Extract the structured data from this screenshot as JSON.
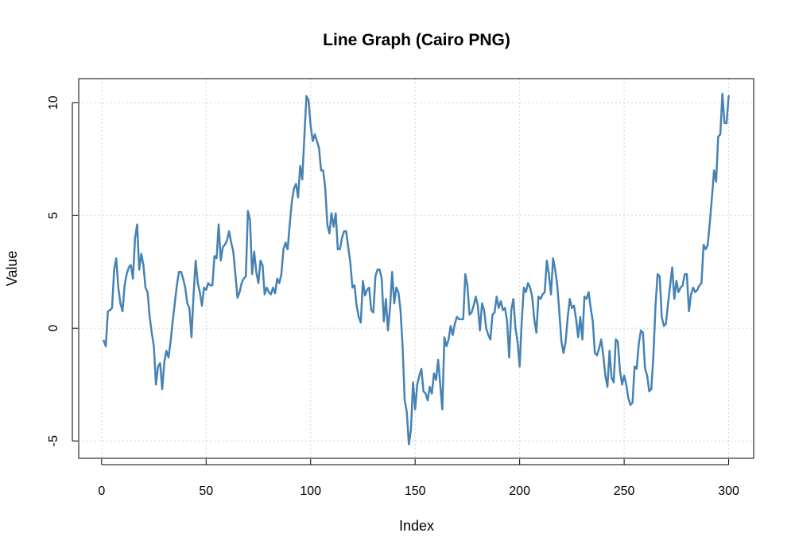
{
  "chart_data": {
    "type": "line",
    "title": "Line Graph (Cairo PNG)",
    "xlabel": "Index",
    "ylabel": "Value",
    "xlim": [
      -10.96,
      311.96
    ],
    "ylim": [
      -5.77,
      11.07
    ],
    "x_ticks": [
      0,
      50,
      100,
      150,
      200,
      250,
      300
    ],
    "y_ticks": [
      -5,
      0,
      5,
      10
    ],
    "grid": true,
    "line_color": "#4682b4",
    "series": [
      {
        "values": [
          -0.55,
          -0.8,
          0.75,
          0.8,
          0.9,
          2.6,
          3.1,
          1.8,
          1.1,
          0.75,
          1.9,
          2.4,
          2.7,
          2.8,
          2.2,
          4.0,
          4.6,
          2.6,
          3.3,
          2.8,
          1.8,
          1.6,
          0.5,
          -0.2,
          -0.8,
          -2.5,
          -1.7,
          -1.55,
          -2.7,
          -1.5,
          -1.0,
          -1.3,
          -0.6,
          0.3,
          1.1,
          1.9,
          2.5,
          2.5,
          2.2,
          1.8,
          1.1,
          0.9,
          -0.4,
          1.5,
          3.0,
          2.0,
          1.6,
          1.0,
          1.8,
          1.7,
          2.0,
          1.9,
          1.9,
          3.2,
          3.1,
          4.6,
          3.0,
          3.6,
          3.7,
          3.9,
          4.3,
          3.8,
          3.4,
          2.4,
          1.35,
          1.6,
          2.0,
          2.2,
          2.3,
          5.2,
          4.8,
          2.4,
          3.4,
          2.5,
          2.0,
          3.0,
          2.8,
          1.5,
          1.8,
          1.6,
          1.5,
          1.8,
          1.55,
          2.2,
          2.0,
          2.4,
          3.5,
          3.8,
          3.5,
          4.6,
          5.6,
          6.2,
          6.4,
          5.8,
          7.2,
          6.6,
          8.5,
          10.3,
          10.1,
          9.0,
          8.3,
          8.6,
          8.3,
          8.0,
          7.0,
          7.0,
          6.2,
          4.6,
          4.2,
          5.1,
          4.5,
          5.1,
          3.5,
          3.5,
          4.0,
          4.3,
          4.3,
          3.6,
          2.9,
          1.8,
          1.9,
          1.0,
          0.5,
          0.25,
          2.1,
          1.45,
          1.7,
          1.8,
          0.8,
          0.7,
          2.3,
          2.6,
          2.6,
          2.2,
          0.3,
          1.3,
          -0.1,
          0.9,
          2.5,
          1.1,
          1.8,
          1.6,
          0.8,
          -0.8,
          -3.2,
          -3.7,
          -5.15,
          -4.5,
          -2.4,
          -3.6,
          -2.5,
          -2.1,
          -1.8,
          -2.8,
          -2.9,
          -3.2,
          -2.6,
          -2.9,
          -2.0,
          -2.3,
          -1.4,
          -2.5,
          -3.6,
          -0.4,
          -0.8,
          -0.5,
          0.1,
          -0.3,
          0.2,
          0.5,
          0.4,
          0.4,
          0.4,
          2.4,
          1.9,
          0.6,
          0.7,
          1.0,
          1.4,
          1.0,
          -0.1,
          1.1,
          0.8,
          0.0,
          -0.3,
          -0.5,
          0.6,
          0.7,
          1.4,
          0.9,
          1.2,
          0.8,
          0.9,
          0.3,
          -1.3,
          0.8,
          1.3,
          0.0,
          -0.6,
          -1.7,
          0.3,
          1.8,
          1.6,
          2.0,
          1.8,
          1.4,
          0.4,
          -0.2,
          1.4,
          1.3,
          1.5,
          1.6,
          3.0,
          2.4,
          1.5,
          3.1,
          2.6,
          1.9,
          0.7,
          -0.6,
          -1.1,
          -0.6,
          0.5,
          1.3,
          0.9,
          1.0,
          0.4,
          -0.4,
          0.5,
          -0.5,
          1.4,
          1.3,
          1.6,
          0.9,
          0.3,
          -1.1,
          -1.2,
          -0.9,
          -0.5,
          -1.2,
          -2.1,
          -2.6,
          -1.0,
          -2.2,
          -2.4,
          -0.5,
          -0.6,
          -1.9,
          -2.5,
          -2.1,
          -2.5,
          -3.1,
          -3.4,
          -3.3,
          -1.7,
          -1.8,
          -0.7,
          -0.1,
          -0.2,
          -1.8,
          -2.1,
          -2.8,
          -2.7,
          -1.2,
          1.0,
          2.4,
          2.3,
          0.5,
          0.1,
          0.2,
          1.1,
          1.9,
          2.7,
          1.3,
          2.1,
          1.6,
          1.8,
          1.9,
          2.4,
          2.4,
          0.75,
          1.5,
          1.8,
          1.6,
          1.7,
          1.9,
          2.0,
          3.7,
          3.5,
          3.7,
          4.7,
          5.8,
          7.0,
          6.5,
          8.5,
          8.6,
          10.4,
          9.1,
          9.1,
          10.3
        ]
      }
    ]
  }
}
